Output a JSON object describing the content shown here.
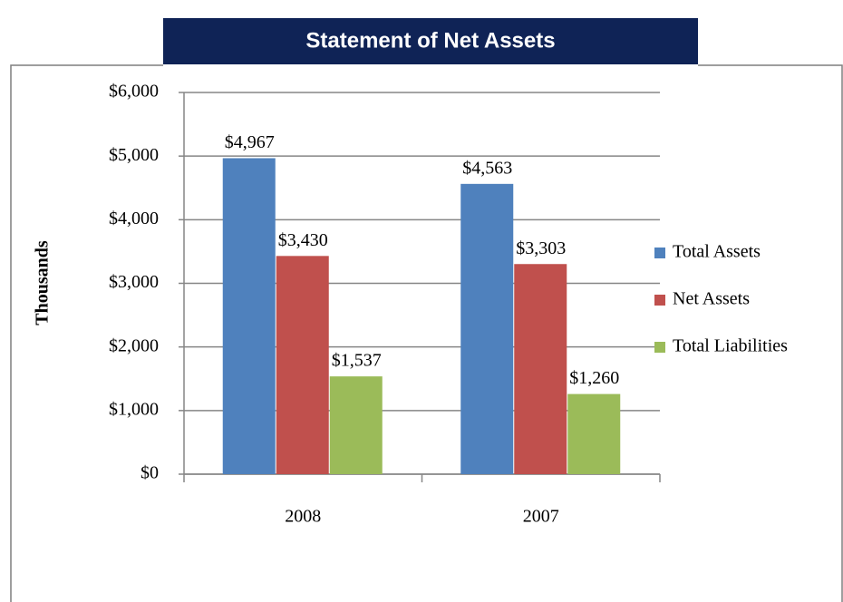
{
  "chart_data": {
    "type": "bar",
    "title": "Statement of Net Assets",
    "y_label": "Thousands",
    "categories": [
      "2008",
      "2007"
    ],
    "series": [
      {
        "name": "Total Assets",
        "color": "#4f81bd",
        "values": [
          4967,
          4563
        ],
        "value_labels": [
          "$4,967",
          "$4,563"
        ]
      },
      {
        "name": "Net Assets",
        "color": "#c0504d",
        "values": [
          3430,
          3303
        ],
        "value_labels": [
          "$3,430",
          "$3,303"
        ]
      },
      {
        "name": "Total Liabilities",
        "color": "#9bbb59",
        "values": [
          1537,
          1260
        ],
        "value_labels": [
          "$1,537",
          "$1,260"
        ]
      }
    ],
    "ylim": [
      0,
      6000
    ],
    "yticks": [
      {
        "value": 0,
        "label": "$0"
      },
      {
        "value": 1000,
        "label": "$1,000"
      },
      {
        "value": 2000,
        "label": "$2,000"
      },
      {
        "value": 3000,
        "label": "$3,000"
      },
      {
        "value": 4000,
        "label": "$4,000"
      },
      {
        "value": 5000,
        "label": "$5,000"
      },
      {
        "value": 6000,
        "label": "$6,000"
      }
    ],
    "grid": true,
    "legend": "right"
  }
}
